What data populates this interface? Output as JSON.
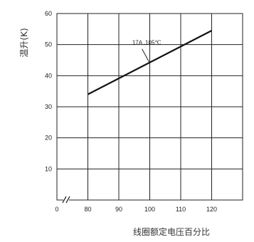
{
  "chart_data": {
    "type": "line",
    "xlabel": "线圈额定电压百分比",
    "ylabel": "温升(K)",
    "x_axis_break": true,
    "x_origin_label": "0",
    "x_ticks": [
      80,
      90,
      100,
      110,
      120
    ],
    "y_ticks": [
      10,
      20,
      30,
      40,
      50,
      60
    ],
    "xlim": [
      70,
      130
    ],
    "ylim": [
      0,
      60
    ],
    "grid": true,
    "series": [
      {
        "name": "17A ,105℃",
        "x": [
          80,
          120
        ],
        "y": [
          34,
          54.5
        ]
      }
    ],
    "annotation": {
      "text": "17A ,105℃",
      "points_to": [
        100,
        44
      ]
    }
  }
}
